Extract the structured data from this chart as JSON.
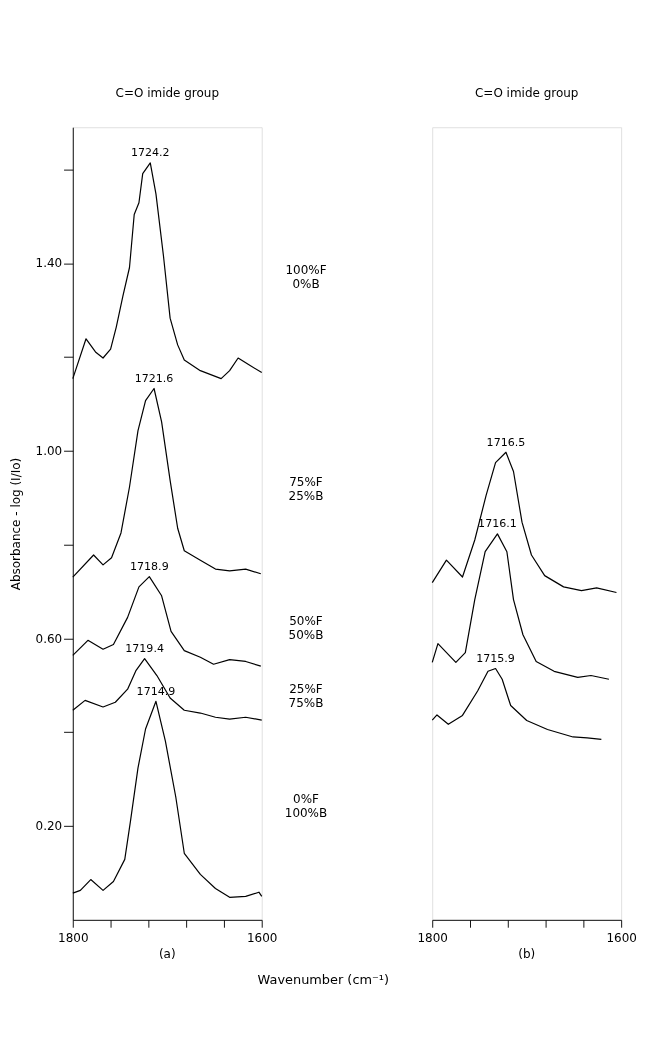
{
  "chart_data": [
    {
      "type": "line",
      "title": "(a)",
      "xlabel": "Wavenumber (cm⁻¹)",
      "ylabel": "Absorbance  - log (I/Io)",
      "line_style": "solid",
      "xlim": [
        1800,
        1600
      ],
      "xticks": [
        1800,
        {
          "value": 1760,
          "label": null
        },
        {
          "value": 1720,
          "label": null
        },
        {
          "value": 1680,
          "label": null
        },
        {
          "value": 1640,
          "label": null
        },
        1600
      ],
      "ylim": [
        0,
        1.69
      ],
      "yticks": [
        {
          "value": 0.2,
          "label": "0.20"
        },
        {
          "value": 0.4,
          "label": null
        },
        {
          "value": 0.6,
          "label": "0.60"
        },
        {
          "value": 0.8,
          "label": null
        },
        {
          "value": 1.0,
          "label": "1.00"
        },
        {
          "value": 1.2,
          "label": null
        },
        {
          "value": 1.4,
          "label": "1.40"
        },
        {
          "value": 1.6,
          "label": null
        }
      ],
      "annotations": [
        "C=O imide group",
        {
          "text": "1724.2",
          "x": 1718,
          "y": 1.614
        },
        {
          "text": "1721.6",
          "x": 1714,
          "y": 1.133
        },
        {
          "text": "1718.9",
          "x": 1719,
          "y": 0.732
        },
        {
          "text": "1719.4",
          "x": 1724,
          "y": 0.557
        },
        {
          "text": "1714.9",
          "x": 1712,
          "y": 0.466
        }
      ],
      "series": [
        {
          "name": "100%F\n0%B",
          "color": "#000000",
          "x": [
            1800,
            1786,
            1776,
            1768,
            1760,
            1754,
            1747,
            1740,
            1735,
            1730,
            1726,
            1718,
            1712,
            1704,
            1697,
            1689,
            1682,
            1665,
            1643,
            1634,
            1625,
            1614,
            1600
          ],
          "values": [
            1.154,
            1.239,
            1.211,
            1.198,
            1.217,
            1.264,
            1.33,
            1.391,
            1.504,
            1.529,
            1.591,
            1.614,
            1.548,
            1.415,
            1.283,
            1.226,
            1.194,
            1.171,
            1.154,
            1.171,
            1.198,
            1.184,
            1.167
          ]
        },
        {
          "name": "75%F\n25%B",
          "color": "#000000",
          "x": [
            1800,
            1778,
            1768,
            1759,
            1749,
            1740,
            1731,
            1723,
            1714,
            1706,
            1697,
            1689,
            1682,
            1665,
            1649,
            1634,
            1617,
            1601
          ],
          "values": [
            0.731,
            0.778,
            0.757,
            0.772,
            0.825,
            0.923,
            1.043,
            1.107,
            1.133,
            1.062,
            0.937,
            0.835,
            0.787,
            0.767,
            0.748,
            0.744,
            0.748,
            0.738
          ]
        },
        {
          "name": "50%F\n50%B",
          "color": "#000000",
          "x": [
            1800,
            1784,
            1768,
            1757,
            1742,
            1730,
            1719,
            1706,
            1696,
            1682,
            1665,
            1651,
            1634,
            1617,
            1601
          ],
          "values": [
            0.564,
            0.596,
            0.577,
            0.587,
            0.645,
            0.71,
            0.732,
            0.691,
            0.615,
            0.574,
            0.56,
            0.545,
            0.555,
            0.551,
            0.541
          ]
        },
        {
          "name": "25%F\n75%B",
          "color": "#000000",
          "x": [
            1800,
            1787,
            1768,
            1755,
            1742,
            1733,
            1724,
            1711,
            1697,
            1682,
            1665,
            1649,
            1634,
            1617,
            1600
          ],
          "values": [
            0.447,
            0.468,
            0.454,
            0.464,
            0.492,
            0.532,
            0.557,
            0.521,
            0.473,
            0.447,
            0.441,
            0.432,
            0.428,
            0.432,
            0.426
          ]
        },
        {
          "name": "0%F\n100%B",
          "color": "#000000",
          "x": [
            1800,
            1792,
            1781,
            1768,
            1757,
            1745,
            1739,
            1731,
            1723,
            1712,
            1702,
            1691,
            1682,
            1665,
            1649,
            1634,
            1617,
            1603,
            1600
          ],
          "values": [
            0.057,
            0.063,
            0.086,
            0.063,
            0.082,
            0.129,
            0.21,
            0.324,
            0.407,
            0.466,
            0.381,
            0.262,
            0.142,
            0.097,
            0.067,
            0.048,
            0.05,
            0.059,
            0.05
          ]
        }
      ]
    },
    {
      "type": "line",
      "title": "(b)",
      "line_style": "solid",
      "tick_labels": "x",
      "xlim": [
        1800,
        1600
      ],
      "xticks": [
        1800,
        {
          "value": 1760,
          "label": null
        },
        {
          "value": 1720,
          "label": null
        },
        {
          "value": 1680,
          "label": null
        },
        {
          "value": 1640,
          "label": null
        },
        1600
      ],
      "ylim": [
        0,
        1.69
      ],
      "annotations": [
        "C=O imide group",
        {
          "text": "1716.5",
          "x": 1722,
          "y": 0.997
        },
        {
          "text": "1716.1",
          "x": 1731,
          "y": 0.823
        },
        {
          "text": "1715.9",
          "x": 1733,
          "y": 0.536
        }
      ],
      "series": [
        {
          "color": "#000000",
          "x": [
            1800,
            1785,
            1768,
            1755,
            1743,
            1733,
            1722,
            1714,
            1705,
            1695,
            1681,
            1661,
            1642,
            1626,
            1605
          ],
          "values": [
            0.719,
            0.767,
            0.731,
            0.81,
            0.905,
            0.975,
            0.997,
            0.956,
            0.848,
            0.778,
            0.734,
            0.71,
            0.702,
            0.708,
            0.698
          ]
        },
        {
          "color": "#000000",
          "x": [
            1800,
            1794,
            1775,
            1765,
            1755,
            1744,
            1731,
            1721,
            1714,
            1704,
            1690,
            1671,
            1646,
            1632,
            1613
          ],
          "values": [
            0.549,
            0.589,
            0.549,
            0.57,
            0.683,
            0.785,
            0.823,
            0.785,
            0.683,
            0.608,
            0.551,
            0.53,
            0.517,
            0.521,
            0.513
          ]
        },
        {
          "color": "#000000",
          "x": [
            1800,
            1795,
            1783,
            1768,
            1752,
            1741,
            1733,
            1726,
            1717,
            1700,
            1678,
            1651,
            1636,
            1621
          ],
          "values": [
            0.426,
            0.437,
            0.417,
            0.436,
            0.488,
            0.53,
            0.536,
            0.513,
            0.457,
            0.425,
            0.406,
            0.39,
            0.388,
            0.385
          ]
        }
      ]
    }
  ]
}
